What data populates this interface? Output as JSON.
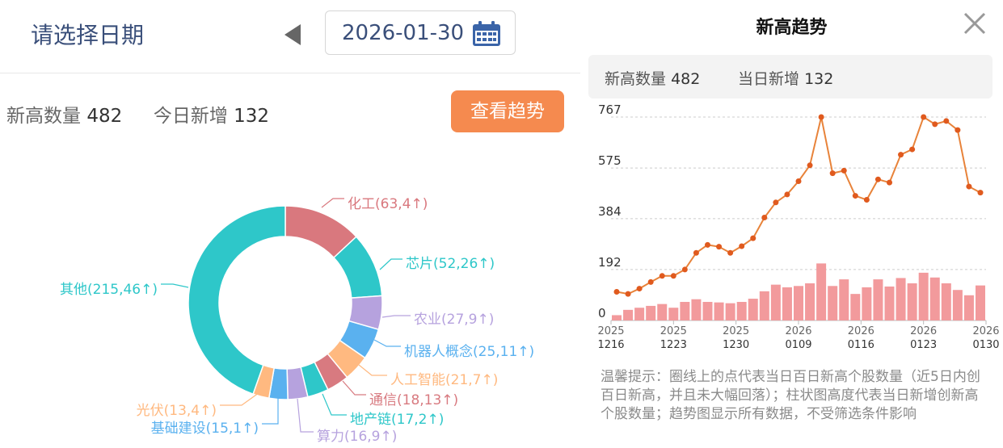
{
  "date_picker": {
    "label": "请选择日期",
    "date": "2026-01-30",
    "prev_icon": "triangle-left-icon",
    "calendar_icon": "calendar-icon"
  },
  "stats": {
    "new_high_label": "新高数量",
    "new_high_value": "482",
    "today_new_label": "今日新增",
    "today_new_value": "132"
  },
  "trend_button": {
    "label": "查看趋势",
    "color": "#f58a4f"
  },
  "donut": {
    "segments": [
      {
        "label": "化工(63,4↑)",
        "value": 63,
        "color": "#d9787e"
      },
      {
        "label": "芯片(52,26↑)",
        "value": 52,
        "color": "#2ec7c9"
      },
      {
        "label": "农业(27,9↑)",
        "value": 27,
        "color": "#b6a2de"
      },
      {
        "label": "机器人概念(25,11↑)",
        "value": 25,
        "color": "#5ab1ef"
      },
      {
        "label": "人工智能(21,7↑)",
        "value": 21,
        "color": "#ffb980"
      },
      {
        "label": "通信(18,13↑)",
        "value": 18,
        "color": "#d87a80"
      },
      {
        "label": "地产链(17,2↑)",
        "value": 17,
        "color": "#2ec7c9"
      },
      {
        "label": "算力(16,9↑)",
        "value": 16,
        "color": "#b6a2de"
      },
      {
        "label": "基础建设(15,1↑)",
        "value": 15,
        "color": "#5ab1ef"
      },
      {
        "label": "光伏(13,4↑)",
        "value": 13,
        "color": "#ffb980"
      },
      {
        "label": "其他(215,46↑)",
        "value": 215,
        "color": "#2ec7c9"
      }
    ]
  },
  "trend_panel": {
    "title": "新高趋势",
    "close_icon": "close-icon",
    "summary_new_high_label": "新高数量",
    "summary_new_high_value": "482",
    "summary_today_label": "当日新增",
    "summary_today_value": "132",
    "tip": "温馨提示：圈线上的点代表当日百日新高个股数量（近5日内创百日新高，并且未大幅回落）；柱状图高度代表当日新增创新高个股数量；趋势图显示所有数据，不受筛选条件影响"
  },
  "chart_data": {
    "type": "bar+line",
    "y_ticks": [
      "767",
      "575",
      "384",
      "192",
      "0"
    ],
    "ylim": [
      0,
      767
    ],
    "x_ticks": [
      {
        "top": "2025",
        "bottom": "1216"
      },
      {
        "top": "2025",
        "bottom": "1223"
      },
      {
        "top": "2025",
        "bottom": "1230"
      },
      {
        "top": "2026",
        "bottom": "0109"
      },
      {
        "top": "2026",
        "bottom": "0116"
      },
      {
        "top": "2026",
        "bottom": "0123"
      },
      {
        "top": "2026",
        "bottom": "0130"
      }
    ],
    "line_color": "#e8833a",
    "bar_color": "#f29a9c",
    "series": [
      {
        "type": "line",
        "values": [
          108,
          100,
          120,
          145,
          168,
          168,
          192,
          255,
          285,
          278,
          255,
          280,
          310,
          388,
          445,
          475,
          525,
          585,
          767,
          555,
          565,
          470,
          455,
          532,
          520,
          625,
          645,
          767,
          740,
          752,
          718,
          505,
          482
        ]
      },
      {
        "type": "bar",
        "values": [
          20,
          40,
          48,
          55,
          62,
          48,
          70,
          80,
          70,
          68,
          65,
          70,
          82,
          110,
          135,
          125,
          130,
          140,
          215,
          130,
          155,
          100,
          125,
          155,
          128,
          160,
          140,
          180,
          162,
          140,
          115,
          95,
          132
        ]
      }
    ]
  }
}
